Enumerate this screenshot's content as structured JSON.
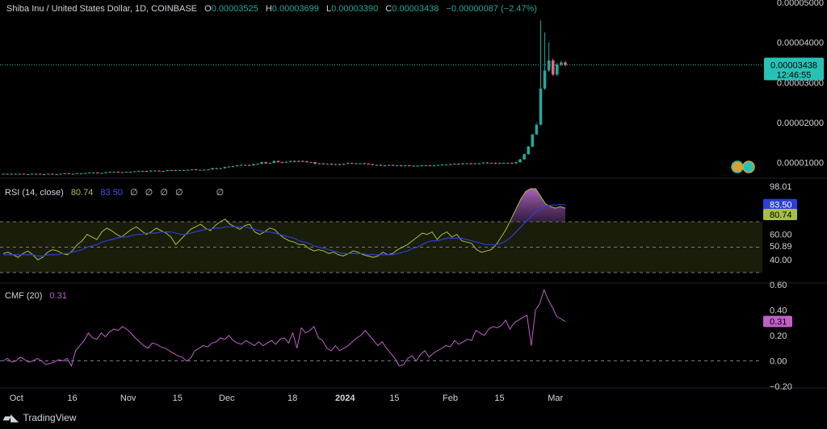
{
  "header": {
    "symbol": "Shiba Inu / United States Dollar, 1D, COINBASE",
    "open_label": "O",
    "open": "0.00003525",
    "high_label": "H",
    "high": "0.00003699",
    "low_label": "L",
    "low": "0.00003390",
    "close_label": "C",
    "close": "0.00003438",
    "change": "−0.00000087 (−2.47%)"
  },
  "price_badge": {
    "price": "0.00003438",
    "countdown": "12:46:55"
  },
  "rsi_header": {
    "name": "RSI (14, close)",
    "rsi": "80.74",
    "ma": "83.50",
    "empty_values": [
      "∅",
      "∅",
      "∅",
      "∅",
      "∅"
    ]
  },
  "cmf_header": {
    "name": "CMF (20)",
    "value": "0.31"
  },
  "branding": {
    "name": "TradingView"
  },
  "colors": {
    "up": "#26a69a",
    "down": "#f0627e",
    "rsi": "#a8c040",
    "rsi_ma": "#2c3fd8",
    "cmf": "#c060c8",
    "last_price": "#27c2b5"
  },
  "chart_data": [
    {
      "type": "candlestick",
      "title": "Shiba Inu / United States Dollar, 1D, COINBASE",
      "y_ticks": [
        "0.00005000",
        "0.00004000",
        "0.00003000",
        "0.00002000",
        "0.00001000"
      ],
      "ylim": [
        6.5e-06,
        5e-05
      ],
      "x_ticks": [
        "Oct",
        "16",
        "Nov",
        "15",
        "Dec",
        "18",
        "2024",
        "15",
        "Feb",
        "15",
        "Mar"
      ],
      "last_price": 3.438e-05,
      "close": [
        7.2e-06,
        7.2e-06,
        7.1e-06,
        7.2e-06,
        7.2e-06,
        7.1e-06,
        7.1e-06,
        7.2e-06,
        7.2e-06,
        7.1e-06,
        7.1e-06,
        7.2e-06,
        7.1e-06,
        7.1e-06,
        7.2e-06,
        7.3e-06,
        7.2e-06,
        7.2e-06,
        7.3e-06,
        7.3e-06,
        7.4e-06,
        7.5e-06,
        7.5e-06,
        7.4e-06,
        7.4e-06,
        7.6e-06,
        7.7e-06,
        7.7e-06,
        7.6e-06,
        7.6e-06,
        7.7e-06,
        7.7e-06,
        7.8e-06,
        7.9e-06,
        7.9e-06,
        7.8e-06,
        8e-06,
        8e-06,
        7.9e-06,
        7.9e-06,
        8.1e-06,
        8.1e-06,
        8e-06,
        8.1e-06,
        8.1e-06,
        8.2e-06,
        8.3e-06,
        8.2e-06,
        8.2e-06,
        8.2e-06,
        8.3e-06,
        8.6e-06,
        8.5e-06,
        8.6e-06,
        8.9e-06,
        9e-06,
        9.1e-06,
        9.3e-06,
        9.4e-06,
        9.4e-06,
        9.3e-06,
        9.6e-06,
        9.7e-06,
        1.01e-05,
        9.8e-06,
        9.9e-06,
        1.04e-05,
        1.01e-05,
        1e-05,
        1.02e-05,
        1.04e-05,
        1.02e-05,
        1.04e-05,
        1.03e-05,
        1.01e-05,
        1.01e-05,
        9.7e-06,
        9.8e-06,
        9.7e-06,
        9.7e-06,
        9.5e-06,
        9.6e-06,
        9.5e-06,
        9.7e-06,
        9.9e-06,
        9.8e-06,
        9.8e-06,
        9.8e-06,
        9.7e-06,
        9.6e-06,
        9.4e-06,
        9.4e-06,
        9.3e-06,
        9.3e-06,
        9.4e-06,
        9.3e-06,
        9.3e-06,
        9.2e-06,
        9.3e-06,
        9.2e-06,
        9.2e-06,
        9.2e-06,
        9.3e-06,
        9.3e-06,
        9.2e-06,
        9.3e-06,
        9.4e-06,
        9.5e-06,
        9.5e-06,
        9.6e-06,
        9.7e-06,
        9.6e-06,
        9.8e-06,
        9.8e-06,
        9.7e-06,
        9.8e-06,
        9.8e-06,
        1e-05,
        9.9e-06,
        9.9e-06,
        9.8e-06,
        9.9e-06,
        9.9e-06,
        9.9e-06,
        9.8e-06,
        1.01e-05,
        1.08e-05,
        1.21e-05,
        1.4e-05,
        1.7e-05,
        1.95e-05,
        2.85e-05,
        3.3e-05,
        3.55e-05,
        3.2e-05,
        3.45e-05,
        3.5e-05,
        3.44e-05
      ]
    },
    {
      "type": "line",
      "title": "RSI (14, close)",
      "series": [
        {
          "name": "RSI",
          "values": [
            45,
            46,
            44,
            42,
            45,
            47,
            44,
            40,
            42,
            46,
            48,
            47,
            45,
            44,
            47,
            52,
            55,
            60,
            58,
            56,
            62,
            65,
            63,
            60,
            58,
            61,
            64,
            66,
            63,
            60,
            62,
            65,
            63,
            61,
            58,
            52,
            56,
            60,
            64,
            66,
            68,
            65,
            63,
            67,
            70,
            72,
            68,
            66,
            64,
            67,
            68,
            62,
            60,
            62,
            65,
            64,
            60,
            57,
            55,
            54,
            52,
            52,
            49,
            47,
            48,
            47,
            45,
            46,
            44,
            43,
            45,
            47,
            46,
            44,
            43,
            42,
            43,
            46,
            44,
            45,
            48,
            50,
            52,
            55,
            58,
            61,
            60,
            62,
            56,
            60,
            62,
            58,
            60,
            55,
            54,
            53,
            48,
            46,
            47,
            48,
            52,
            58,
            64,
            72,
            80,
            88,
            94,
            96,
            96,
            90,
            84,
            82,
            80.74,
            82,
            80.74
          ]
        },
        {
          "name": "RSI-based MA",
          "values": [
            44,
            44,
            44,
            44,
            44,
            44,
            44,
            43,
            43,
            44,
            44,
            44,
            45,
            45,
            46,
            47,
            48,
            50,
            51,
            52,
            54,
            55,
            56,
            57,
            58,
            58,
            59,
            60,
            60,
            61,
            61,
            61,
            62,
            62,
            62,
            61,
            60,
            60,
            61,
            62,
            63,
            64,
            64,
            65,
            65,
            66,
            66,
            66,
            66,
            66,
            65,
            64,
            63,
            62,
            62,
            61,
            60,
            59,
            58,
            57,
            55,
            54,
            53,
            51,
            50,
            49,
            48,
            47,
            46,
            45,
            45,
            45,
            45,
            45,
            44,
            44,
            44,
            44,
            44,
            44,
            45,
            46,
            47,
            49,
            50,
            52,
            54,
            55,
            55,
            56,
            57,
            57,
            57,
            57,
            56,
            55,
            54,
            53,
            52,
            52,
            52,
            53,
            55,
            58,
            62,
            66,
            70,
            74,
            78,
            80,
            82,
            83,
            83.2,
            83.4,
            83.5
          ]
        }
      ],
      "y_ticks": [
        "60.00",
        "50.89",
        "40.00"
      ],
      "ylim": [
        23,
        103
      ],
      "band": [
        30,
        70
      ],
      "level_labels": [
        "98.01"
      ]
    },
    {
      "type": "line",
      "title": "CMF (20)",
      "series": [
        {
          "name": "CMF",
          "values": [
            0.0,
            0.02,
            -0.01,
            0.0,
            0.03,
            0.01,
            -0.01,
            0.0,
            0.02,
            0.0,
            -0.03,
            -0.02,
            -0.01,
            0.01,
            0.0,
            0.02,
            -0.04,
            0.08,
            0.12,
            0.16,
            0.22,
            0.18,
            0.17,
            0.22,
            0.19,
            0.23,
            0.25,
            0.24,
            0.27,
            0.25,
            0.22,
            0.18,
            0.15,
            0.12,
            0.1,
            0.14,
            0.13,
            0.11,
            0.1,
            0.08,
            0.06,
            0.04,
            0.03,
            0.0,
            0.02,
            0.08,
            0.1,
            0.12,
            0.11,
            0.14,
            0.15,
            0.18,
            0.17,
            0.2,
            0.16,
            0.14,
            0.13,
            0.16,
            0.14,
            0.12,
            0.15,
            0.12,
            0.14,
            0.16,
            0.13,
            0.17,
            0.18,
            0.14,
            0.22,
            0.1,
            0.26,
            0.22,
            0.24,
            0.27,
            0.18,
            0.16,
            0.1,
            0.08,
            0.12,
            0.08,
            0.1,
            0.12,
            0.15,
            0.18,
            0.2,
            0.24,
            0.2,
            0.16,
            0.12,
            0.15,
            0.1,
            0.06,
            0.02,
            -0.04,
            -0.03,
            0.02,
            0.04,
            0.0,
            0.05,
            0.08,
            0.03,
            0.06,
            0.08,
            0.1,
            0.12,
            0.11,
            0.16,
            0.13,
            0.15,
            0.17,
            0.16,
            0.24,
            0.22,
            0.2,
            0.25,
            0.27,
            0.26,
            0.28,
            0.32,
            0.25,
            0.3,
            0.32,
            0.34,
            0.36,
            0.12,
            0.4,
            0.45,
            0.56,
            0.48,
            0.42,
            0.35,
            0.33,
            0.31
          ]
        }
      ],
      "y_ticks": [
        "0.60",
        "0.40",
        "0.20",
        "0.00",
        "−0.20"
      ],
      "ylim": [
        -0.2,
        0.6
      ]
    }
  ]
}
